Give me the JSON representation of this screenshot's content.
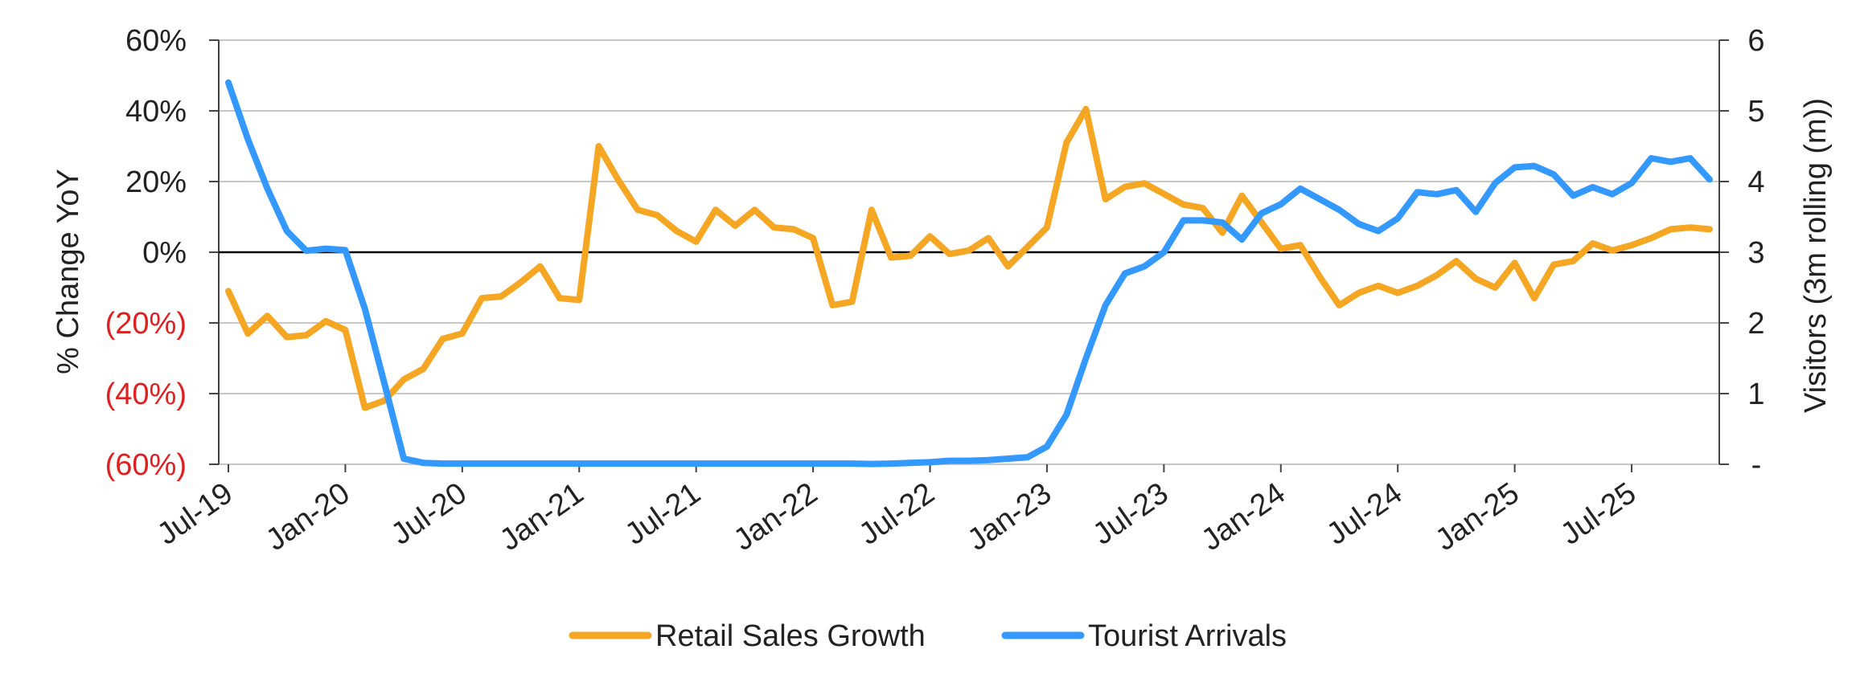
{
  "chart_data": {
    "type": "line",
    "ylabel": "% Change YoY",
    "y2label": "Visitors (3m rolling (m))",
    "ylim": [
      -60,
      60
    ],
    "y2lim": [
      0,
      6
    ],
    "yticks": [
      {
        "value": 60,
        "label": "60%",
        "negative": false
      },
      {
        "value": 40,
        "label": "40%",
        "negative": false
      },
      {
        "value": 20,
        "label": "20%",
        "negative": false
      },
      {
        "value": 0,
        "label": "0%",
        "negative": false
      },
      {
        "value": -20,
        "label": "(20%)",
        "negative": true
      },
      {
        "value": -40,
        "label": "(40%)",
        "negative": true
      },
      {
        "value": -60,
        "label": "(60%)",
        "negative": true
      }
    ],
    "y2ticks": [
      {
        "value": 6,
        "label": "6"
      },
      {
        "value": 5,
        "label": "5"
      },
      {
        "value": 4,
        "label": "4"
      },
      {
        "value": 3,
        "label": "3"
      },
      {
        "value": 2,
        "label": "2"
      },
      {
        "value": 1,
        "label": "1"
      },
      {
        "value": 0,
        "label": "-"
      }
    ],
    "xticks": [
      {
        "label": "Jul-19",
        "index": 0
      },
      {
        "label": "Jan-20",
        "index": 6
      },
      {
        "label": "Jul-20",
        "index": 12
      },
      {
        "label": "Jan-21",
        "index": 18
      },
      {
        "label": "Jul-21",
        "index": 24
      },
      {
        "label": "Jan-22",
        "index": 30
      },
      {
        "label": "Jul-22",
        "index": 36
      },
      {
        "label": "Jan-23",
        "index": 42
      },
      {
        "label": "Jul-23",
        "index": 48
      },
      {
        "label": "Jan-24",
        "index": 54
      },
      {
        "label": "Jul-24",
        "index": 60
      },
      {
        "label": "Jan-25",
        "index": 66
      },
      {
        "label": "Jul-25",
        "index": 72
      }
    ],
    "x_count": 77,
    "grid": "horizontal",
    "legend": "bottom-center",
    "series": [
      {
        "name": "Retail Sales Growth",
        "axis": "left",
        "color": "#F5A623",
        "values": [
          -11,
          -23,
          -18,
          -24,
          -23.5,
          -19.5,
          -22,
          -44,
          -42,
          -36,
          -33,
          -24.5,
          -23,
          -13,
          -12.5,
          -8.5,
          -4,
          -13,
          -13.5,
          30,
          20.5,
          12,
          10.5,
          6,
          3,
          12,
          7.5,
          12,
          7,
          6.5,
          4,
          -15,
          -14,
          12,
          -1.5,
          -1,
          4.5,
          -0.5,
          0.5,
          4,
          -4,
          1.5,
          7,
          31,
          40.5,
          15,
          18.5,
          19.5,
          16.5,
          13.5,
          12.5,
          5.5,
          16,
          8.5,
          1,
          2,
          -7,
          -15,
          -11.5,
          -9.5,
          -11.5,
          -9.5,
          -6.5,
          -2.5,
          -7.5,
          -10,
          -3,
          -13,
          -3.5,
          -2.5,
          2.5,
          0.5,
          2,
          4,
          6.5,
          7,
          6.5
        ]
      },
      {
        "name": "Tourist Arrivals",
        "axis": "right",
        "color": "#3399FF",
        "values": [
          5.4,
          4.6,
          3.9,
          3.3,
          3.02,
          3.05,
          3.03,
          2.2,
          1.15,
          0.08,
          0.02,
          0.01,
          0.01,
          0.01,
          0.01,
          0.01,
          0.01,
          0.01,
          0.01,
          0.01,
          0.01,
          0.01,
          0.01,
          0.01,
          0.01,
          0.01,
          0.01,
          0.01,
          0.01,
          0.01,
          0.01,
          0.01,
          0.01,
          0.005,
          0.01,
          0.02,
          0.03,
          0.05,
          0.05,
          0.06,
          0.08,
          0.1,
          0.25,
          0.7,
          1.5,
          2.25,
          2.7,
          2.8,
          3.0,
          3.45,
          3.45,
          3.42,
          3.18,
          3.55,
          3.68,
          3.9,
          3.75,
          3.6,
          3.4,
          3.3,
          3.48,
          3.85,
          3.82,
          3.88,
          3.57,
          3.98,
          4.2,
          4.22,
          4.1,
          3.8,
          3.92,
          3.82,
          3.98,
          4.33,
          4.28,
          4.33,
          4.03
        ]
      }
    ]
  }
}
